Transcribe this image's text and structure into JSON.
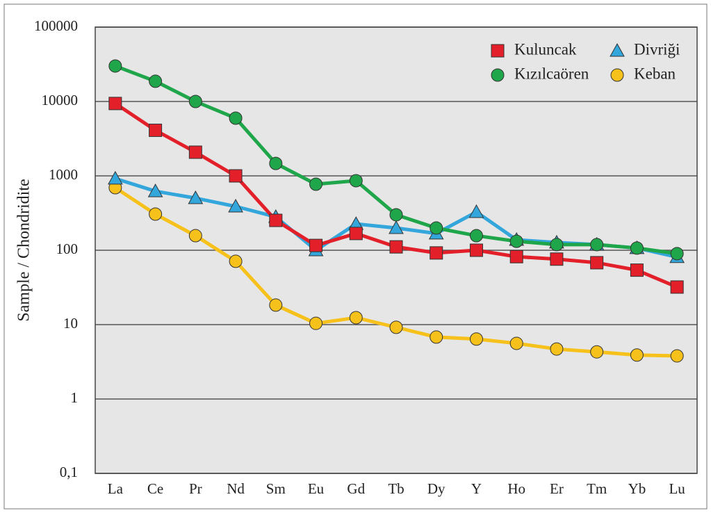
{
  "chart_data": {
    "type": "line",
    "y_label": "Sample / Chondridite",
    "categories": [
      "La",
      "Ce",
      "Pr",
      "Nd",
      "Sm",
      "Eu",
      "Gd",
      "Tb",
      "Dy",
      "Y",
      "Ho",
      "Er",
      "Tm",
      "Yb",
      "Lu"
    ],
    "series": [
      {
        "name": "Kuluncak",
        "color": "#e3202a",
        "marker": "square",
        "values": [
          9400,
          4100,
          2080,
          1000,
          252,
          116,
          168,
          111,
          92,
          100,
          82,
          76,
          68,
          54,
          32
        ]
      },
      {
        "name": "Kızılcaören",
        "color": "#1fa64a",
        "marker": "circle",
        "values": [
          30000,
          18700,
          10000,
          5970,
          1470,
          772,
          861,
          300,
          199,
          157,
          132,
          119,
          119,
          107,
          90
        ]
      },
      {
        "name": "Divriği",
        "color": "#33a6dc",
        "marker": "triangle",
        "values": [
          920,
          622,
          502,
          388,
          281,
          100,
          226,
          199,
          168,
          327,
          138,
          127,
          119,
          107,
          81
        ]
      },
      {
        "name": "Keban",
        "color": "#f7c11b",
        "marker": "circle",
        "values": [
          693,
          306,
          157,
          71,
          18.3,
          10.4,
          12.4,
          9.2,
          6.8,
          6.4,
          5.6,
          4.7,
          4.3,
          3.9,
          3.8
        ]
      }
    ],
    "ylog": true,
    "ylim": [
      0.1,
      100000
    ],
    "yticks": [
      {
        "value": 0.1,
        "label": "0,1"
      },
      1,
      10,
      100,
      1000,
      10000,
      100000
    ],
    "grid": true,
    "legend": "top-right"
  }
}
